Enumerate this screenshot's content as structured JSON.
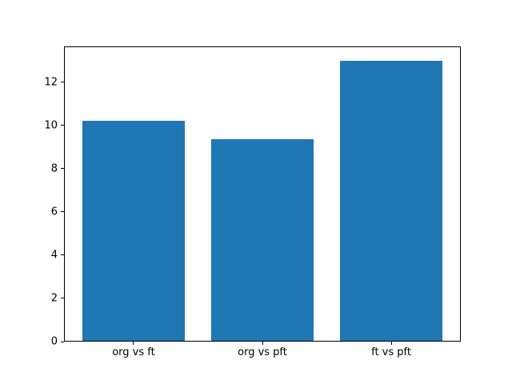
{
  "figure": {
    "background": "#ffffff"
  },
  "chart_data": {
    "type": "bar",
    "categories": [
      "org vs ft",
      "org vs pft",
      "ft vs pft"
    ],
    "values": [
      10.2,
      9.35,
      13.0
    ],
    "title": "",
    "xlabel": "",
    "ylabel": "",
    "ylim": [
      0,
      13.65
    ],
    "xlim": [
      -0.54,
      2.54
    ],
    "yticks": [
      0,
      2,
      4,
      6,
      8,
      10,
      12
    ],
    "bar_width": 0.8,
    "bar_color": "#1f77b4",
    "grid": false,
    "legend": null
  }
}
